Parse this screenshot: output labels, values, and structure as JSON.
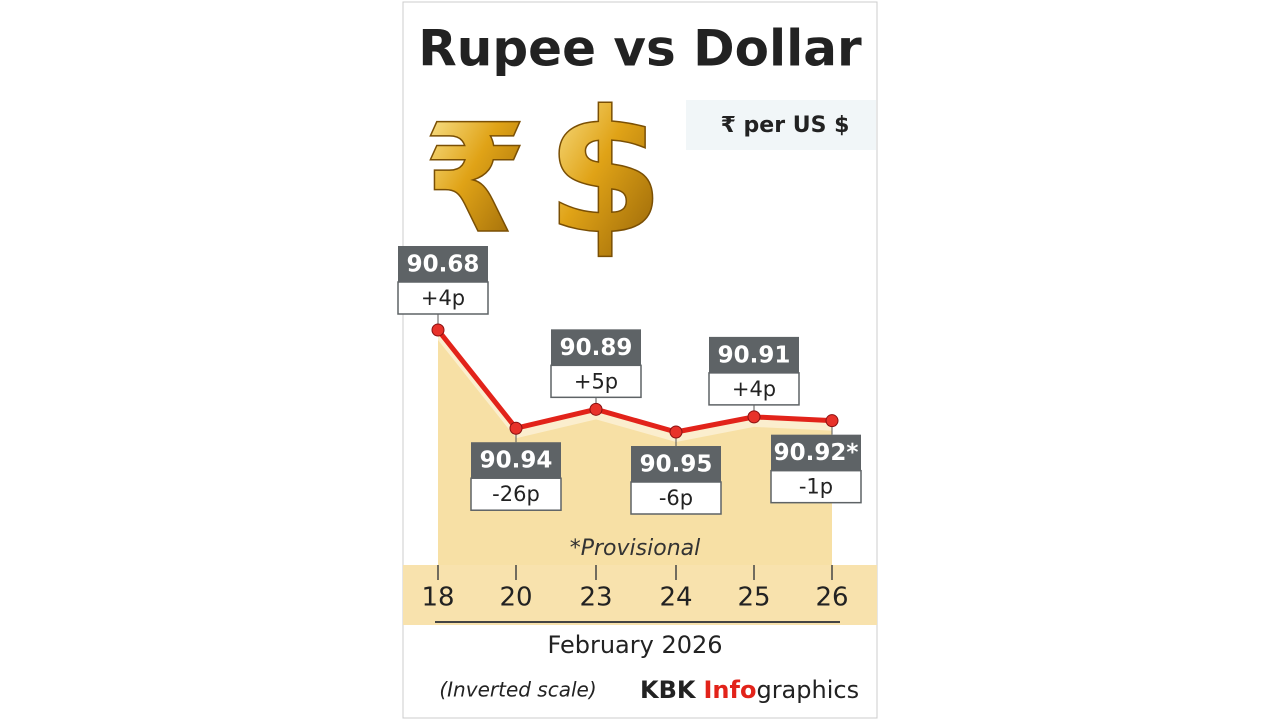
{
  "chart_data": {
    "type": "line",
    "title": "Rupee vs Dollar",
    "symbols": [
      "₹",
      "$"
    ],
    "unit": "₹ per US $",
    "categories": [
      "18",
      "20",
      "23",
      "24",
      "25",
      "26"
    ],
    "values": [
      90.68,
      90.94,
      90.89,
      90.95,
      90.91,
      90.92
    ],
    "value_labels": [
      "90.68",
      "90.94",
      "90.89",
      "90.95",
      "90.91",
      "90.92*"
    ],
    "changes": [
      "+4p",
      "-26p",
      "+5p",
      "-6p",
      "+4p",
      "-1p"
    ],
    "color": "#e2231a",
    "inverted_scale": true,
    "note": "*Provisional",
    "x_label": "February 2026",
    "footnote": "(Inverted scale)",
    "credit": {
      "brand": "KBK",
      "highlight": "Info",
      "rest": "graphics"
    }
  }
}
